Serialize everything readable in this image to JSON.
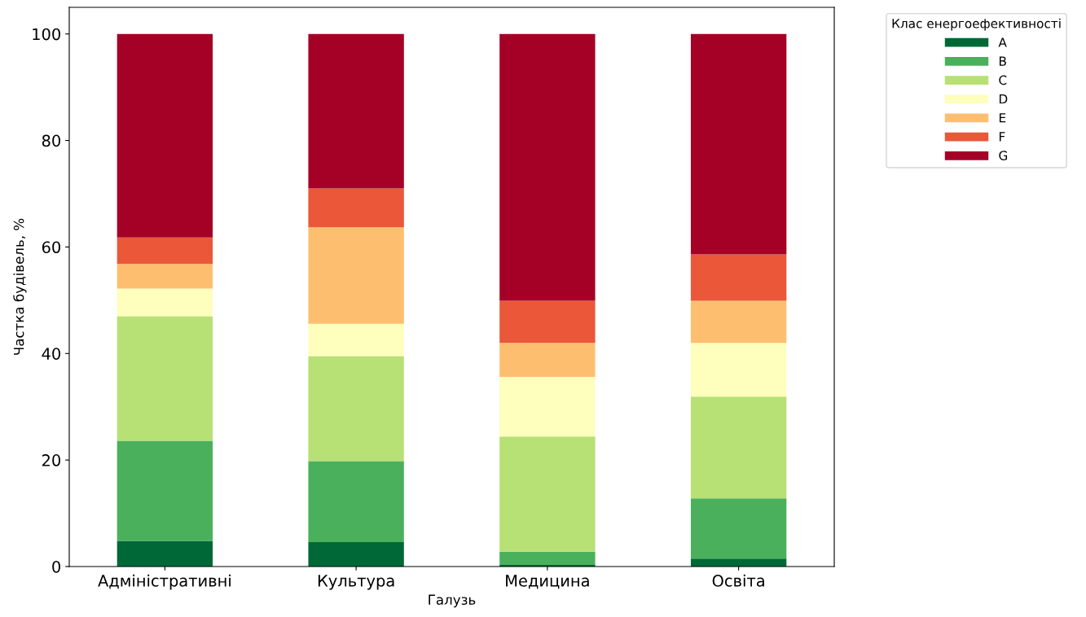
{
  "chart_data": {
    "type": "bar",
    "stacked": true,
    "xlabel": "Галузь",
    "ylabel": "Частка будівель, %",
    "legend_title": "Клас енергоефективності",
    "legend": "top right",
    "grid": false,
    "categories": [
      "Адміністративні",
      "Культура",
      "Медицина",
      "Освіта"
    ],
    "ylim": [
      0,
      105
    ],
    "yticks": [
      0,
      20,
      40,
      60,
      80,
      100
    ],
    "series": [
      {
        "name": "A",
        "color": "#006837",
        "values": [
          4.8,
          4.6,
          0.3,
          1.5
        ]
      },
      {
        "name": "B",
        "color": "#4bb05c",
        "values": [
          18.8,
          15.2,
          2.5,
          11.3
        ]
      },
      {
        "name": "C",
        "color": "#b7e075",
        "values": [
          23.4,
          19.7,
          21.6,
          19.1
        ]
      },
      {
        "name": "D",
        "color": "#fefebd",
        "values": [
          5.2,
          6.1,
          11.2,
          10.1
        ]
      },
      {
        "name": "E",
        "color": "#fdbf6f",
        "values": [
          4.6,
          18.1,
          6.4,
          7.9
        ]
      },
      {
        "name": "F",
        "color": "#ea5739",
        "values": [
          5.0,
          7.3,
          7.9,
          8.7
        ]
      },
      {
        "name": "G",
        "color": "#a50026",
        "values": [
          38.2,
          29.0,
          50.1,
          41.4
        ]
      }
    ]
  }
}
